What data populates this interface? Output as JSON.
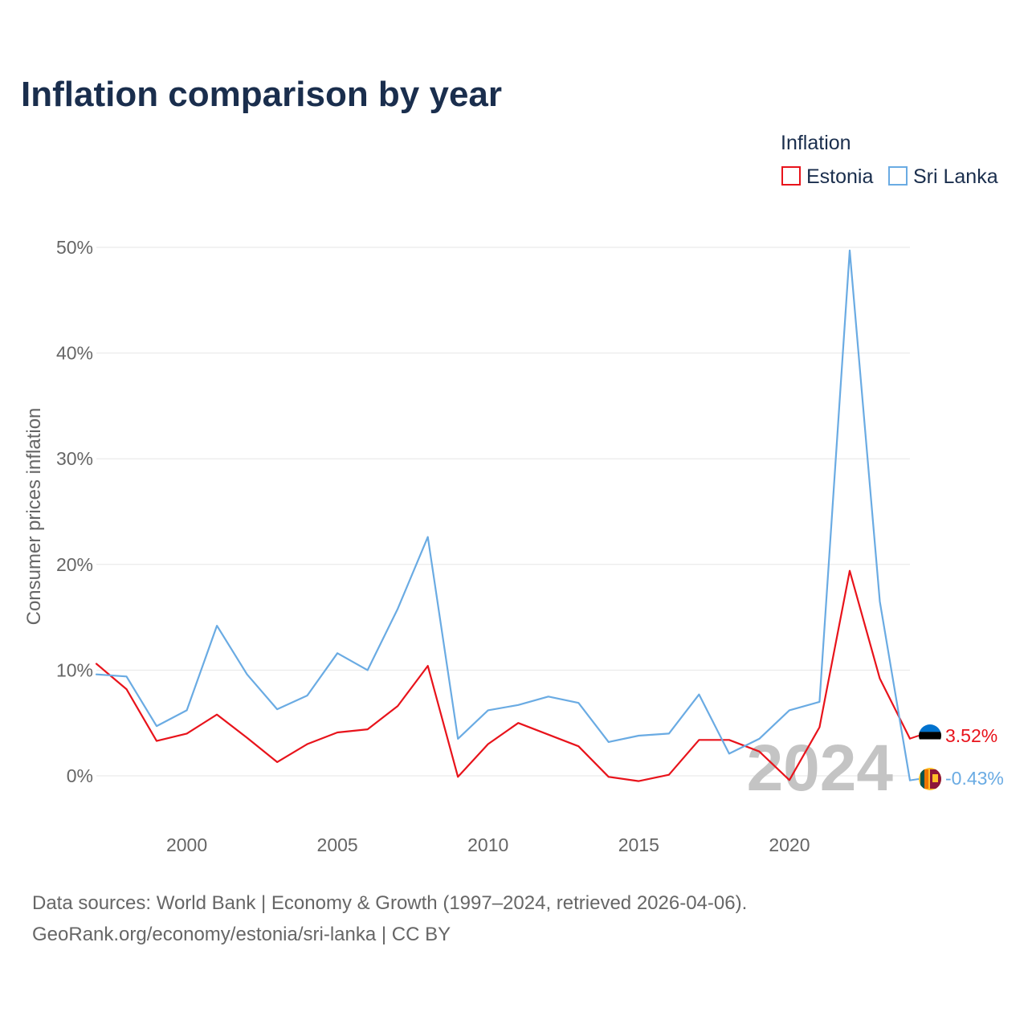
{
  "colors": {
    "estonia": "#e8131b",
    "sri_lanka": "#6aabe3",
    "title": "#1a2e4d",
    "axis_text": "#666666",
    "watermark": "#c4c4c4"
  },
  "footer": {
    "line1": "Data sources: World Bank | Economy & Growth (1997–2024, retrieved 2026-04-06).",
    "line2": "GeoRank.org/economy/estonia/sri-lanka | CC BY"
  },
  "chart_data": {
    "type": "line",
    "title": "Inflation comparison by year",
    "ylabel": "Consumer prices inflation",
    "xlabel": "",
    "legend_title": "Inflation",
    "legend_position": "top-right",
    "watermark_year": "2024",
    "x": [
      1997,
      1998,
      1999,
      2000,
      2001,
      2002,
      2003,
      2004,
      2005,
      2006,
      2007,
      2008,
      2009,
      2010,
      2011,
      2012,
      2013,
      2014,
      2015,
      2016,
      2017,
      2018,
      2019,
      2020,
      2021,
      2022,
      2023,
      2024
    ],
    "xlim": [
      1997,
      2024
    ],
    "ylim": [
      0,
      50
    ],
    "x_ticks": [
      2000,
      2005,
      2010,
      2015,
      2020
    ],
    "y_ticks": [
      0,
      10,
      20,
      30,
      40,
      50
    ],
    "y_tick_labels": [
      "0%",
      "10%",
      "20%",
      "30%",
      "40%",
      "50%"
    ],
    "grid": true,
    "series": [
      {
        "name": "Estonia",
        "color": "#e8131b",
        "end_label": "3.52%",
        "flag": "estonia-flag",
        "values": [
          10.6,
          8.2,
          3.3,
          4.0,
          5.8,
          3.6,
          1.3,
          3.0,
          4.1,
          4.4,
          6.6,
          10.4,
          -0.1,
          3.0,
          5.0,
          3.9,
          2.8,
          -0.1,
          -0.5,
          0.1,
          3.4,
          3.4,
          2.3,
          -0.4,
          4.6,
          19.4,
          9.2,
          3.52
        ]
      },
      {
        "name": "Sri Lanka",
        "color": "#6aabe3",
        "end_label": "-0.43%",
        "flag": "sri-lanka-flag",
        "values": [
          9.6,
          9.4,
          4.7,
          6.2,
          14.2,
          9.6,
          6.3,
          7.6,
          11.6,
          10.0,
          15.8,
          22.6,
          3.5,
          6.2,
          6.7,
          7.5,
          6.9,
          3.2,
          3.8,
          4.0,
          7.7,
          2.1,
          3.5,
          6.2,
          7.0,
          49.7,
          16.5,
          -0.43
        ]
      }
    ]
  }
}
